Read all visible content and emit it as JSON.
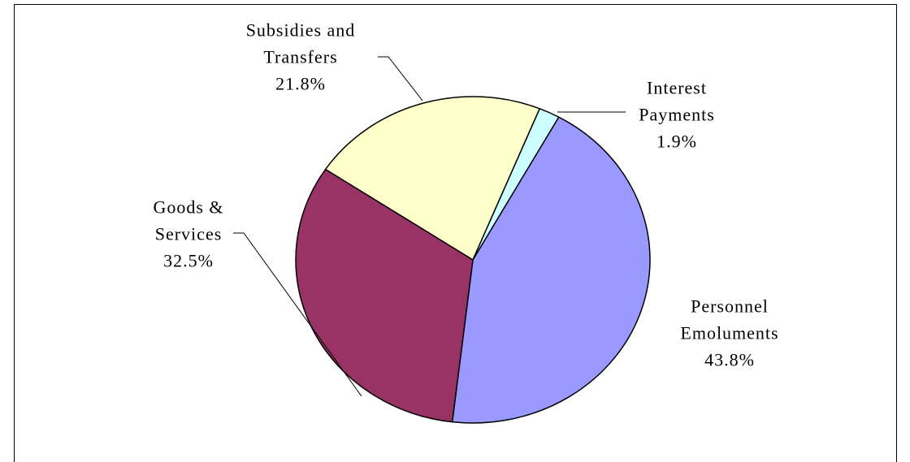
{
  "chart_data": {
    "type": "pie",
    "categories": [
      "Personnel Emoluments",
      "Goods & Services",
      "Subsidies and Transfers",
      "Interest Payments"
    ],
    "values": [
      43.8,
      32.5,
      21.8,
      1.9
    ],
    "value_labels": [
      "43.8%",
      "32.5%",
      "21.8%",
      "1.9%"
    ],
    "colors": [
      "#9999ff",
      "#993366",
      "#ffffcc",
      "#ccffff"
    ]
  }
}
